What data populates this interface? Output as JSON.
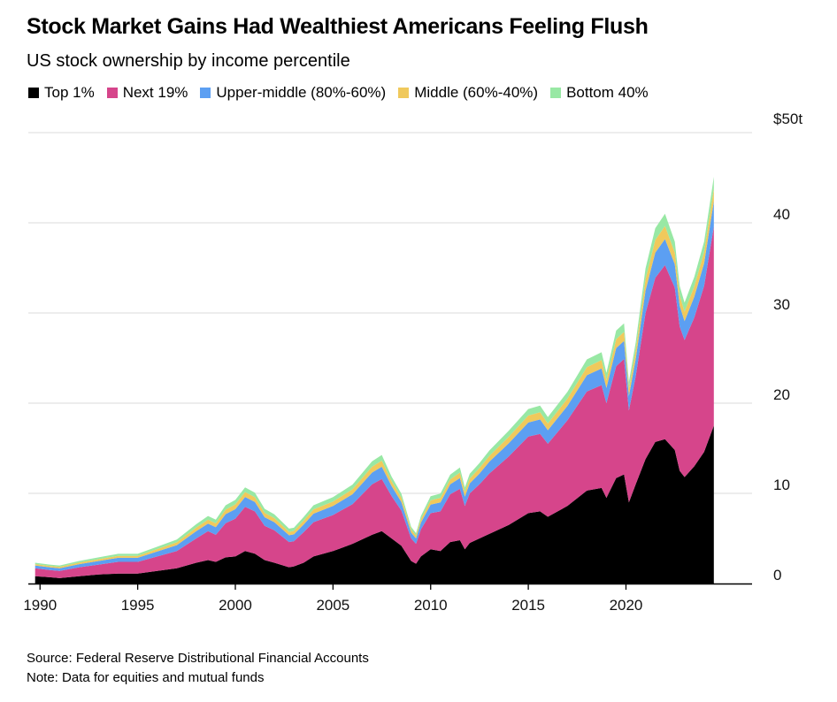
{
  "header": {
    "title": "Stock Market Gains Had Wealthiest Americans Feeling Flush",
    "subtitle": "US stock ownership by income percentile"
  },
  "footer": {
    "source": "Source: Federal Reserve Distributional Financial Accounts",
    "note": "Note: Data for equities and mutual funds"
  },
  "chart_data": {
    "type": "area",
    "stacked": true,
    "title": "Stock Market Gains Had Wealthiest Americans Feeling Flush",
    "subtitle": "US stock ownership by income percentile",
    "xlabel": "",
    "ylabel": "",
    "xlim": [
      1989.4,
      2027
    ],
    "ylim": [
      0,
      50
    ],
    "y_unit_label": "$50t",
    "y_ticks": [
      0,
      10,
      20,
      30,
      40,
      50
    ],
    "y_tick_labels": [
      "0",
      "10",
      "20",
      "30",
      "40",
      "$50t"
    ],
    "x_ticks": [
      1990,
      1995,
      2000,
      2005,
      2010,
      2015,
      2020
    ],
    "x_tick_labels": [
      "1990",
      "1995",
      "2000",
      "2005",
      "2010",
      "2015",
      "2020"
    ],
    "grid": "horizontal",
    "legend_position": "top-left",
    "x": [
      1989.75,
      1990.5,
      1991.0,
      1992.0,
      1993.0,
      1994.0,
      1995.0,
      1996.0,
      1997.0,
      1998.0,
      1998.6,
      1999.0,
      1999.5,
      2000.0,
      2000.5,
      2001.0,
      2001.5,
      2002.0,
      2002.75,
      2003.0,
      2003.5,
      2004.0,
      2005.0,
      2006.0,
      2007.0,
      2007.5,
      2008.0,
      2008.5,
      2009.0,
      2009.25,
      2009.5,
      2010.0,
      2010.5,
      2011.0,
      2011.5,
      2011.75,
      2012.0,
      2012.5,
      2013.0,
      2014.0,
      2015.0,
      2015.6,
      2016.0,
      2017.0,
      2018.0,
      2018.75,
      2019.0,
      2019.5,
      2019.9,
      2020.15,
      2020.5,
      2021.0,
      2021.5,
      2022.0,
      2022.5,
      2022.75,
      2023.0,
      2023.5,
      2024.0,
      2024.5
    ],
    "series": [
      {
        "name": "Top 1%",
        "color": "#000000",
        "values": [
          0.8,
          0.7,
          0.6,
          0.8,
          1.0,
          1.1,
          1.1,
          1.4,
          1.7,
          2.3,
          2.6,
          2.4,
          2.9,
          3.0,
          3.6,
          3.3,
          2.6,
          2.3,
          1.8,
          1.9,
          2.3,
          3.0,
          3.6,
          4.4,
          5.4,
          5.8,
          5.0,
          4.2,
          2.5,
          2.2,
          3.0,
          3.8,
          3.6,
          4.6,
          4.8,
          3.8,
          4.5,
          5.0,
          5.5,
          6.5,
          7.8,
          8.0,
          7.4,
          8.6,
          10.3,
          10.6,
          9.5,
          11.7,
          12.1,
          9.0,
          11.0,
          13.8,
          15.7,
          16.0,
          14.8,
          12.5,
          11.8,
          13.0,
          14.6,
          17.5
        ]
      },
      {
        "name": "Next 19%",
        "color": "#d6458b",
        "values": [
          0.9,
          0.8,
          0.8,
          1.0,
          1.1,
          1.3,
          1.3,
          1.6,
          1.9,
          2.7,
          3.2,
          3.0,
          3.8,
          4.2,
          4.9,
          4.7,
          3.8,
          3.6,
          2.8,
          2.8,
          3.4,
          3.8,
          4.0,
          4.4,
          5.6,
          5.8,
          4.7,
          3.9,
          2.5,
          2.2,
          3.0,
          4.0,
          4.4,
          5.3,
          5.7,
          4.8,
          5.5,
          6.0,
          6.7,
          7.6,
          8.5,
          8.6,
          8.1,
          9.5,
          11.0,
          11.4,
          10.5,
          12.4,
          12.8,
          10.2,
          12.0,
          16.2,
          18.2,
          19.3,
          18.0,
          16.0,
          15.2,
          16.5,
          18.4,
          22.1
        ]
      },
      {
        "name": "Upper-middle (80%-60%)",
        "color": "#5c9ff2",
        "values": [
          0.3,
          0.3,
          0.3,
          0.35,
          0.4,
          0.45,
          0.45,
          0.55,
          0.65,
          0.8,
          0.85,
          0.85,
          1.0,
          1.05,
          1.1,
          1.05,
          0.95,
          0.9,
          0.75,
          0.75,
          0.85,
          0.95,
          1.0,
          1.1,
          1.3,
          1.35,
          1.1,
          0.95,
          0.65,
          0.6,
          0.75,
          0.95,
          1.0,
          1.1,
          1.2,
          1.05,
          1.1,
          1.2,
          1.3,
          1.45,
          1.55,
          1.6,
          1.5,
          1.6,
          1.8,
          1.85,
          1.7,
          2.0,
          2.0,
          1.6,
          1.9,
          2.5,
          2.8,
          2.9,
          2.6,
          2.3,
          2.1,
          2.3,
          2.5,
          2.8
        ]
      },
      {
        "name": "Middle (60%-40%)",
        "color": "#f0c95c",
        "values": [
          0.15,
          0.15,
          0.15,
          0.18,
          0.2,
          0.22,
          0.22,
          0.27,
          0.32,
          0.4,
          0.43,
          0.43,
          0.5,
          0.52,
          0.55,
          0.52,
          0.48,
          0.45,
          0.38,
          0.38,
          0.42,
          0.48,
          0.5,
          0.55,
          0.65,
          0.68,
          0.55,
          0.48,
          0.33,
          0.3,
          0.38,
          0.48,
          0.5,
          0.55,
          0.6,
          0.52,
          0.55,
          0.6,
          0.65,
          0.72,
          0.78,
          0.8,
          0.75,
          0.8,
          0.9,
          0.92,
          0.85,
          1.0,
          1.0,
          0.8,
          0.95,
          1.25,
          1.4,
          1.45,
          1.3,
          1.15,
          1.05,
          1.15,
          1.25,
          1.4
        ]
      },
      {
        "name": "Bottom 40%",
        "color": "#98e8a4",
        "values": [
          0.15,
          0.15,
          0.15,
          0.17,
          0.2,
          0.22,
          0.22,
          0.26,
          0.3,
          0.38,
          0.41,
          0.41,
          0.48,
          0.5,
          0.52,
          0.5,
          0.45,
          0.42,
          0.36,
          0.36,
          0.4,
          0.45,
          0.48,
          0.52,
          0.6,
          0.62,
          0.5,
          0.44,
          0.3,
          0.28,
          0.35,
          0.45,
          0.47,
          0.52,
          0.56,
          0.48,
          0.52,
          0.56,
          0.6,
          0.68,
          0.72,
          0.74,
          0.7,
          0.75,
          0.85,
          0.88,
          0.8,
          0.95,
          0.95,
          0.75,
          0.9,
          1.2,
          1.3,
          1.35,
          1.2,
          1.05,
          1.0,
          1.05,
          1.15,
          1.3
        ]
      }
    ]
  }
}
